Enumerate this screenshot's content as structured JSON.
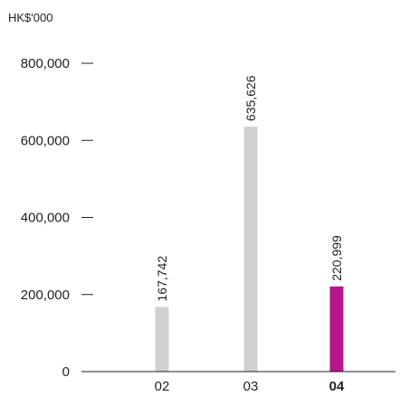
{
  "chart_data": {
    "type": "bar",
    "title": "",
    "xlabel": "",
    "ylabel": "HK$'000",
    "categories": [
      "02",
      "03",
      "04"
    ],
    "values": [
      167742,
      635626,
      220999
    ],
    "value_labels": [
      "167,742",
      "635,626",
      "220,999"
    ],
    "y_ticks": [
      0,
      200000,
      400000,
      600000,
      800000
    ],
    "y_tick_labels": [
      "0",
      "200,000",
      "400,000",
      "600,000",
      "800,000"
    ],
    "ylim": [
      0,
      800000
    ],
    "highlight_index": 2,
    "colors": {
      "default_bar": "#d0d0d0",
      "highlight_bar": "#b5178b",
      "axis": "#231f20",
      "text": "#231f20"
    },
    "grid": false,
    "legend": "none"
  }
}
